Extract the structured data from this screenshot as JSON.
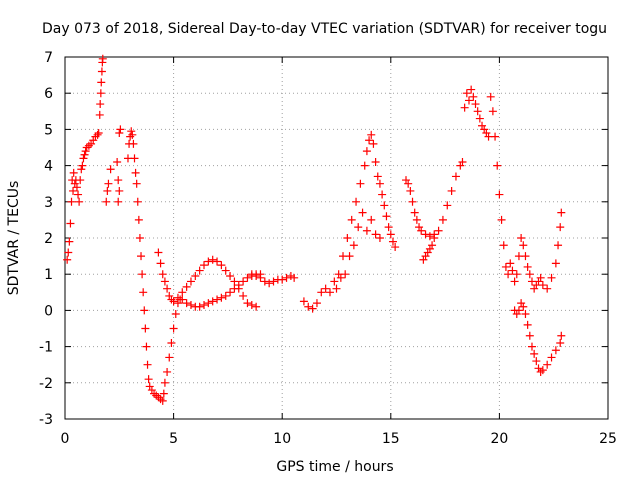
{
  "chart_data": {
    "type": "scatter",
    "title": "Day 073 of 2018, Sidereal Day-to-day VTEC variation (SDTVAR) for receiver togu",
    "xlabel": "GPS time / hours",
    "ylabel": "SDTVAR / TECUs",
    "xlim": [
      0,
      25
    ],
    "ylim": [
      -3,
      7
    ],
    "xticks": [
      "0",
      "5",
      "10",
      "15",
      "20",
      "25"
    ],
    "yticks": [
      "-3",
      "-2",
      "-1",
      "0",
      "1",
      "2",
      "3",
      "4",
      "5",
      "6",
      "7"
    ],
    "grid": true,
    "marker": "+",
    "color": "#ff0000",
    "series": [
      {
        "name": "SDTVAR",
        "points": [
          [
            0.1,
            1.4
          ],
          [
            0.15,
            1.6
          ],
          [
            0.2,
            1.9
          ],
          [
            0.25,
            2.4
          ],
          [
            0.3,
            3.0
          ],
          [
            0.33,
            3.6
          ],
          [
            0.37,
            3.3
          ],
          [
            0.4,
            3.8
          ],
          [
            0.45,
            3.5
          ],
          [
            0.5,
            3.6
          ],
          [
            0.55,
            3.4
          ],
          [
            0.6,
            3.2
          ],
          [
            0.65,
            3.0
          ],
          [
            0.7,
            3.6
          ],
          [
            0.75,
            3.9
          ],
          [
            0.8,
            4.0
          ],
          [
            0.85,
            4.2
          ],
          [
            0.9,
            4.3
          ],
          [
            0.95,
            4.4
          ],
          [
            1.0,
            4.5
          ],
          [
            1.1,
            4.55
          ],
          [
            1.2,
            4.6
          ],
          [
            1.3,
            4.7
          ],
          [
            1.4,
            4.8
          ],
          [
            1.5,
            4.85
          ],
          [
            1.55,
            4.9
          ],
          [
            1.6,
            5.4
          ],
          [
            1.62,
            5.7
          ],
          [
            1.65,
            6.0
          ],
          [
            1.67,
            6.3
          ],
          [
            1.7,
            6.6
          ],
          [
            1.72,
            6.85
          ],
          [
            1.74,
            6.95
          ],
          [
            1.9,
            3.0
          ],
          [
            1.95,
            3.3
          ],
          [
            2.0,
            3.5
          ],
          [
            2.1,
            3.9
          ],
          [
            2.4,
            4.1
          ],
          [
            2.45,
            3.6
          ],
          [
            2.5,
            3.3
          ],
          [
            2.45,
            3.0
          ],
          [
            2.5,
            4.9
          ],
          [
            2.55,
            5.0
          ],
          [
            2.9,
            4.2
          ],
          [
            2.95,
            4.6
          ],
          [
            3.0,
            4.8
          ],
          [
            3.05,
            4.95
          ],
          [
            3.1,
            4.85
          ],
          [
            3.15,
            4.6
          ],
          [
            3.2,
            4.2
          ],
          [
            3.25,
            3.8
          ],
          [
            3.3,
            3.5
          ],
          [
            3.35,
            3.0
          ],
          [
            3.4,
            2.5
          ],
          [
            3.45,
            2.0
          ],
          [
            3.5,
            1.5
          ],
          [
            3.55,
            1.0
          ],
          [
            3.6,
            0.5
          ],
          [
            3.65,
            0.0
          ],
          [
            3.7,
            -0.5
          ],
          [
            3.75,
            -1.0
          ],
          [
            3.8,
            -1.5
          ],
          [
            3.85,
            -1.9
          ],
          [
            3.9,
            -2.1
          ],
          [
            4.0,
            -2.2
          ],
          [
            4.1,
            -2.3
          ],
          [
            4.2,
            -2.35
          ],
          [
            4.3,
            -2.4
          ],
          [
            4.4,
            -2.45
          ],
          [
            4.5,
            -2.5
          ],
          [
            4.55,
            -2.3
          ],
          [
            4.6,
            -2.0
          ],
          [
            4.7,
            -1.7
          ],
          [
            4.8,
            -1.3
          ],
          [
            4.9,
            -0.9
          ],
          [
            5.0,
            -0.5
          ],
          [
            5.1,
            -0.1
          ],
          [
            5.2,
            0.2
          ],
          [
            5.3,
            0.3
          ],
          [
            5.4,
            0.3
          ],
          [
            5.6,
            0.2
          ],
          [
            5.8,
            0.15
          ],
          [
            6.0,
            0.1
          ],
          [
            6.2,
            0.1
          ],
          [
            6.4,
            0.15
          ],
          [
            6.6,
            0.2
          ],
          [
            6.8,
            0.25
          ],
          [
            7.0,
            0.3
          ],
          [
            7.2,
            0.35
          ],
          [
            7.4,
            0.4
          ],
          [
            7.6,
            0.5
          ],
          [
            7.8,
            0.6
          ],
          [
            8.0,
            0.7
          ],
          [
            8.2,
            0.8
          ],
          [
            8.4,
            0.9
          ],
          [
            8.6,
            1.0
          ],
          [
            8.8,
            0.95
          ],
          [
            9.0,
            0.9
          ],
          [
            9.2,
            0.8
          ],
          [
            9.4,
            0.75
          ],
          [
            9.6,
            0.8
          ],
          [
            9.8,
            0.85
          ],
          [
            10.0,
            0.85
          ],
          [
            10.2,
            0.9
          ],
          [
            10.4,
            0.95
          ],
          [
            10.55,
            0.9
          ],
          [
            4.3,
            1.6
          ],
          [
            4.4,
            1.3
          ],
          [
            4.5,
            1.0
          ],
          [
            4.6,
            0.8
          ],
          [
            4.7,
            0.6
          ],
          [
            4.8,
            0.4
          ],
          [
            4.9,
            0.3
          ],
          [
            5.0,
            0.25
          ],
          [
            5.2,
            0.35
          ],
          [
            5.4,
            0.5
          ],
          [
            5.6,
            0.65
          ],
          [
            5.8,
            0.8
          ],
          [
            6.0,
            0.95
          ],
          [
            6.2,
            1.1
          ],
          [
            6.4,
            1.25
          ],
          [
            6.6,
            1.35
          ],
          [
            6.8,
            1.4
          ],
          [
            7.0,
            1.35
          ],
          [
            7.2,
            1.25
          ],
          [
            7.4,
            1.1
          ],
          [
            7.6,
            0.95
          ],
          [
            7.8,
            0.8
          ],
          [
            8.0,
            0.6
          ],
          [
            8.2,
            0.4
          ],
          [
            8.4,
            0.2
          ],
          [
            8.6,
            0.15
          ],
          [
            8.8,
            0.1
          ],
          [
            8.6,
            0.95
          ],
          [
            8.8,
            1.0
          ],
          [
            9.0,
            1.0
          ],
          [
            11.0,
            0.25
          ],
          [
            11.2,
            0.1
          ],
          [
            11.4,
            0.05
          ],
          [
            11.6,
            0.2
          ],
          [
            11.8,
            0.5
          ],
          [
            12.0,
            0.6
          ],
          [
            12.2,
            0.5
          ],
          [
            12.4,
            0.8
          ],
          [
            12.6,
            1.0
          ],
          [
            12.8,
            1.5
          ],
          [
            13.0,
            2.0
          ],
          [
            13.2,
            2.5
          ],
          [
            13.4,
            3.0
          ],
          [
            13.6,
            3.5
          ],
          [
            13.8,
            4.0
          ],
          [
            13.9,
            4.4
          ],
          [
            14.0,
            4.7
          ],
          [
            14.1,
            4.85
          ],
          [
            14.2,
            4.6
          ],
          [
            14.3,
            4.1
          ],
          [
            14.4,
            3.7
          ],
          [
            14.5,
            3.5
          ],
          [
            14.6,
            3.2
          ],
          [
            14.7,
            2.9
          ],
          [
            14.8,
            2.6
          ],
          [
            14.9,
            2.3
          ],
          [
            15.0,
            2.1
          ],
          [
            15.1,
            1.9
          ],
          [
            15.2,
            1.75
          ],
          [
            12.5,
            0.6
          ],
          [
            12.7,
            0.9
          ],
          [
            12.9,
            1.0
          ],
          [
            13.1,
            1.5
          ],
          [
            13.3,
            1.8
          ],
          [
            13.5,
            2.3
          ],
          [
            13.7,
            2.7
          ],
          [
            13.9,
            2.2
          ],
          [
            14.1,
            2.5
          ],
          [
            14.3,
            2.1
          ],
          [
            14.5,
            2.0
          ],
          [
            15.7,
            3.6
          ],
          [
            15.8,
            3.5
          ],
          [
            15.9,
            3.3
          ],
          [
            16.0,
            3.0
          ],
          [
            16.1,
            2.7
          ],
          [
            16.2,
            2.5
          ],
          [
            16.3,
            2.3
          ],
          [
            16.4,
            2.2
          ],
          [
            16.6,
            2.1
          ],
          [
            16.8,
            2.05
          ],
          [
            17.0,
            2.1
          ],
          [
            17.2,
            2.2
          ],
          [
            17.4,
            2.5
          ],
          [
            17.6,
            2.9
          ],
          [
            17.8,
            3.3
          ],
          [
            18.0,
            3.7
          ],
          [
            18.2,
            4.0
          ],
          [
            18.3,
            4.1
          ],
          [
            16.5,
            1.4
          ],
          [
            16.6,
            1.5
          ],
          [
            16.7,
            1.6
          ],
          [
            16.8,
            1.7
          ],
          [
            16.9,
            1.8
          ],
          [
            17.0,
            2.0
          ],
          [
            18.4,
            5.6
          ],
          [
            18.5,
            6.0
          ],
          [
            18.6,
            5.8
          ],
          [
            18.7,
            6.1
          ],
          [
            18.8,
            5.9
          ],
          [
            18.9,
            5.7
          ],
          [
            19.0,
            5.5
          ],
          [
            19.1,
            5.3
          ],
          [
            19.2,
            5.1
          ],
          [
            19.3,
            5.0
          ],
          [
            19.4,
            4.9
          ],
          [
            19.5,
            4.8
          ],
          [
            19.6,
            5.9
          ],
          [
            19.7,
            5.5
          ],
          [
            19.8,
            4.8
          ],
          [
            19.9,
            4.0
          ],
          [
            20.0,
            3.2
          ],
          [
            20.1,
            2.5
          ],
          [
            20.2,
            1.8
          ],
          [
            20.3,
            1.2
          ],
          [
            20.4,
            1.0
          ],
          [
            20.5,
            1.3
          ],
          [
            20.6,
            1.1
          ],
          [
            20.7,
            0.8
          ],
          [
            20.8,
            1.0
          ],
          [
            20.9,
            1.5
          ],
          [
            21.0,
            2.0
          ],
          [
            21.1,
            1.8
          ],
          [
            21.2,
            1.5
          ],
          [
            21.3,
            1.2
          ],
          [
            21.4,
            1.0
          ],
          [
            21.5,
            0.8
          ],
          [
            21.6,
            0.6
          ],
          [
            21.7,
            0.7
          ],
          [
            21.8,
            0.8
          ],
          [
            21.9,
            0.9
          ],
          [
            22.0,
            0.7
          ],
          [
            22.2,
            0.6
          ],
          [
            22.4,
            0.9
          ],
          [
            22.6,
            1.3
          ],
          [
            22.7,
            1.8
          ],
          [
            22.8,
            2.3
          ],
          [
            22.85,
            2.7
          ],
          [
            20.7,
            0.0
          ],
          [
            20.8,
            -0.1
          ],
          [
            20.9,
            0.0
          ],
          [
            21.0,
            0.2
          ],
          [
            21.1,
            0.1
          ],
          [
            21.2,
            -0.1
          ],
          [
            21.3,
            -0.4
          ],
          [
            21.4,
            -0.7
          ],
          [
            21.5,
            -1.0
          ],
          [
            21.6,
            -1.2
          ],
          [
            21.7,
            -1.4
          ],
          [
            21.8,
            -1.6
          ],
          [
            21.9,
            -1.7
          ],
          [
            22.0,
            -1.65
          ],
          [
            22.2,
            -1.5
          ],
          [
            22.4,
            -1.3
          ],
          [
            22.6,
            -1.1
          ],
          [
            22.8,
            -0.9
          ],
          [
            22.85,
            -0.7
          ]
        ]
      }
    ]
  }
}
